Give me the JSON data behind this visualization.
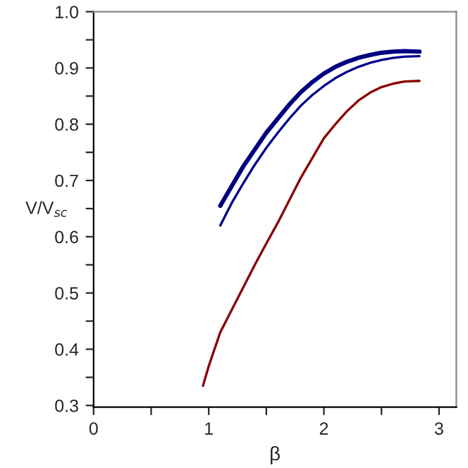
{
  "chart_data": {
    "type": "line",
    "xlabel": "β",
    "ylabel": "V/V$_{sc}$",
    "xlim": [
      0,
      3.15
    ],
    "ylim": [
      0.297,
      1.0
    ],
    "xticks": [
      0,
      {
        "value": 0.5,
        "label": null
      },
      1,
      {
        "value": 1.5,
        "label": null
      },
      2,
      {
        "value": 2.5,
        "label": null
      },
      3
    ],
    "yticks": [
      0.3,
      {
        "value": 0.35,
        "label": null
      },
      0.4,
      {
        "value": 0.45,
        "label": null
      },
      0.5,
      {
        "value": 0.55,
        "label": null
      },
      0.6,
      {
        "value": 0.65,
        "label": null
      },
      0.7,
      {
        "value": 0.75,
        "label": null
      },
      0.8,
      {
        "value": 0.85,
        "label": null
      },
      0.9,
      {
        "value": 0.95,
        "label": null
      },
      {
        "value": 1.0,
        "label": "1.0"
      }
    ],
    "grid": false,
    "legend": false,
    "line_style": "solid",
    "marker": "none",
    "x": [
      1.1,
      1.2,
      1.3,
      1.4,
      1.5,
      1.6,
      1.7,
      1.8,
      1.9,
      2.0,
      2.1,
      2.2,
      2.3,
      2.4,
      2.5,
      2.6,
      2.7,
      2.83
    ],
    "series": [
      {
        "color": "#000080",
        "values": [
          0.655,
          0.69,
          0.725,
          0.755,
          0.785,
          0.81,
          0.835,
          0.857,
          0.875,
          0.89,
          0.902,
          0.911,
          0.918,
          0.923,
          0.927,
          0.929,
          0.93,
          0.929
        ]
      },
      {
        "color": "#00008b",
        "values": [
          0.62,
          0.66,
          0.695,
          0.728,
          0.758,
          0.785,
          0.81,
          0.833,
          0.852,
          0.868,
          0.882,
          0.893,
          0.902,
          0.909,
          0.914,
          0.918,
          0.92,
          0.921
        ]
      },
      {
        "color": "#8b0000",
        "x": [
          0.95,
          1.0,
          1.1,
          1.2,
          1.3,
          1.4,
          1.5,
          1.6,
          1.7,
          1.8,
          1.9,
          2.0,
          2.1,
          2.2,
          2.3,
          2.4,
          2.5,
          2.6,
          2.7,
          2.83
        ],
        "values": [
          0.335,
          0.37,
          0.43,
          0.47,
          0.51,
          0.55,
          0.588,
          0.625,
          0.665,
          0.705,
          0.74,
          0.775,
          0.8,
          0.823,
          0.842,
          0.856,
          0.866,
          0.872,
          0.876,
          0.877
        ]
      }
    ]
  }
}
